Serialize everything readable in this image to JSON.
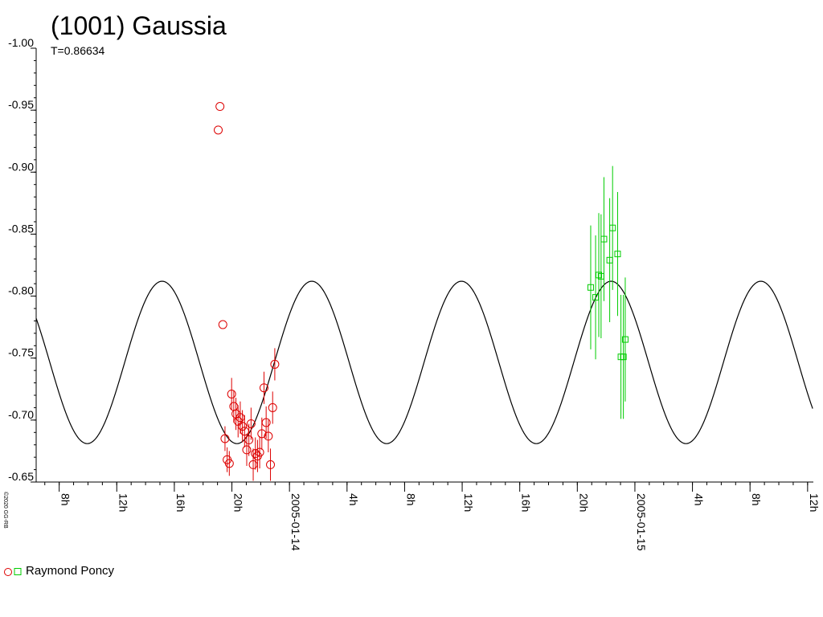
{
  "title": "(1001) Gaussia",
  "subtitle": "T=0.86634",
  "copyright": "©2020 GG-RB",
  "legend": {
    "label": "Raymond Poncy"
  },
  "colors": {
    "series1": "#dd0000",
    "series2": "#00cc00",
    "curve": "#000000",
    "axis": "#000000"
  },
  "chart_data": {
    "type": "scatter",
    "title": "(1001) Gaussia",
    "subtitle": "T=0.86634",
    "y_reversed": true,
    "ylim": [
      -1.0,
      -0.65
    ],
    "yticks": [
      -1.0,
      -0.95,
      -0.9,
      -0.85,
      -0.8,
      -0.75,
      -0.7,
      -0.65
    ],
    "ytick_labels": [
      "-1.00",
      "-0.95",
      "-0.90",
      "-0.85",
      "-0.80",
      "-0.75",
      "-0.70",
      "-0.65"
    ],
    "x_unit": "hours from 2005-01-14 00:00",
    "xlim": [
      -17.6,
      36.4
    ],
    "xticks": [
      -16,
      -12,
      -8,
      -4,
      0,
      4,
      8,
      12,
      16,
      20,
      24,
      28,
      32,
      36
    ],
    "xtick_labels": [
      "8h",
      "12h",
      "16h",
      "20h",
      "2005-01-14",
      "4h",
      "8h",
      "12h",
      "16h",
      "20h",
      "2005-01-15",
      "4h",
      "8h",
      "12h"
    ],
    "xminor_step": 1,
    "model_curve": {
      "period_hours": 10.4,
      "center": -0.7465,
      "amplitude": 0.0655,
      "peak_hour": -8.85
    },
    "series": [
      {
        "name": "Raymond Poncy",
        "marker": "circle",
        "color": "#dd0000",
        "points": [
          {
            "x": -4.95,
            "y": -0.934,
            "err": 0
          },
          {
            "x": -4.83,
            "y": -0.953,
            "err": 0
          },
          {
            "x": -4.63,
            "y": -0.777,
            "err": 0
          },
          {
            "x": -4.48,
            "y": -0.685,
            "err": 0.01
          },
          {
            "x": -4.33,
            "y": -0.668,
            "err": 0.01
          },
          {
            "x": -4.18,
            "y": -0.665,
            "err": 0.01
          },
          {
            "x": -4.02,
            "y": -0.721,
            "err": 0.013
          },
          {
            "x": -3.87,
            "y": -0.711,
            "err": 0.013
          },
          {
            "x": -3.72,
            "y": -0.705,
            "err": 0.013
          },
          {
            "x": -3.57,
            "y": -0.699,
            "err": 0.013
          },
          {
            "x": -3.42,
            "y": -0.702,
            "err": 0.013
          },
          {
            "x": -3.27,
            "y": -0.695,
            "err": 0.013
          },
          {
            "x": -3.12,
            "y": -0.691,
            "err": 0.013
          },
          {
            "x": -2.97,
            "y": -0.676,
            "err": 0.013
          },
          {
            "x": -2.82,
            "y": -0.684,
            "err": 0.013
          },
          {
            "x": -2.67,
            "y": -0.697,
            "err": 0.013
          },
          {
            "x": -2.52,
            "y": -0.664,
            "err": 0.013
          },
          {
            "x": -2.37,
            "y": -0.673,
            "err": 0.013
          },
          {
            "x": -2.22,
            "y": -0.671,
            "err": 0.013
          },
          {
            "x": -2.07,
            "y": -0.674,
            "err": 0.013
          },
          {
            "x": -1.92,
            "y": -0.689,
            "err": 0.013
          },
          {
            "x": -1.77,
            "y": -0.726,
            "err": 0.013
          },
          {
            "x": -1.62,
            "y": -0.698,
            "err": 0.013
          },
          {
            "x": -1.47,
            "y": -0.687,
            "err": 0.013
          },
          {
            "x": -1.32,
            "y": -0.664,
            "err": 0.013
          },
          {
            "x": -1.17,
            "y": -0.71,
            "err": 0.013
          },
          {
            "x": -1.02,
            "y": -0.745,
            "err": 0.013
          }
        ]
      },
      {
        "name": "Raymond Poncy",
        "marker": "square",
        "color": "#00cc00",
        "points": [
          {
            "x": 20.93,
            "y": -0.807,
            "err": 0.05
          },
          {
            "x": 21.27,
            "y": -0.799,
            "err": 0.05
          },
          {
            "x": 21.49,
            "y": -0.817,
            "err": 0.05
          },
          {
            "x": 21.65,
            "y": -0.816,
            "err": 0.05
          },
          {
            "x": 21.85,
            "y": -0.846,
            "err": 0.05
          },
          {
            "x": 22.25,
            "y": -0.829,
            "err": 0.05
          },
          {
            "x": 22.45,
            "y": -0.855,
            "err": 0.05
          },
          {
            "x": 22.8,
            "y": -0.834,
            "err": 0.05
          },
          {
            "x": 23.03,
            "y": -0.751,
            "err": 0.05
          },
          {
            "x": 23.2,
            "y": -0.751,
            "err": 0.05
          },
          {
            "x": 23.33,
            "y": -0.765,
            "err": 0.05
          }
        ]
      }
    ]
  }
}
